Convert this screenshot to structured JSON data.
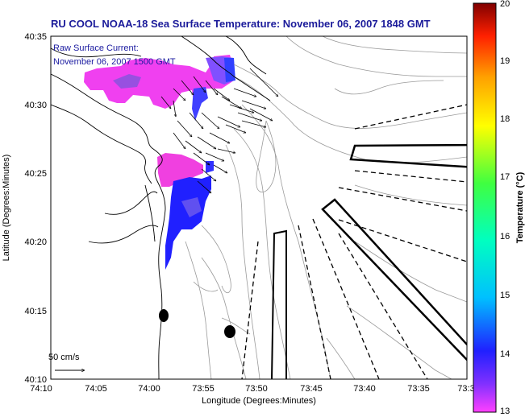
{
  "title": "RU COOL  NOAA-18  Sea Surface Temperature:  November 06, 2007 1848 GMT",
  "current_label_line1": "Raw Surface Current:",
  "current_label_line2": "November 06, 2007 1500 GMT",
  "scale_label": "50 cm/s",
  "xlabel": "Longitude (Degrees:Minutes)",
  "ylabel": "Latitude (Degrees:Minutes)",
  "colorbar_label": "Temperature (°C)",
  "x_ticks": [
    "74:10",
    "74:05",
    "74:00",
    "73:55",
    "73:50",
    "73:45",
    "73:40",
    "73:35",
    "73:3"
  ],
  "y_ticks": [
    "40:35",
    "40:30",
    "40:25",
    "40:20",
    "40:15",
    "40:10"
  ],
  "colorbar_ticks": [
    "20",
    "19",
    "18",
    "17",
    "16",
    "15",
    "14",
    "13"
  ],
  "chart_data": {
    "type": "heatmap",
    "title": "RU COOL  NOAA-18  Sea Surface Temperature:  November 06, 2007 1848 GMT",
    "xlabel": "Longitude (Degrees:Minutes)",
    "ylabel": "Latitude (Degrees:Minutes)",
    "colorbar_range": [
      13,
      20
    ],
    "colorbar_label": "Temperature (°C)",
    "colors": {
      "sst_warm": "#ff40ff",
      "sst_mid": "#9040ff",
      "sst_cool": "#2020ff",
      "coast": "#000000",
      "bathymetry": "#999999"
    }
  }
}
